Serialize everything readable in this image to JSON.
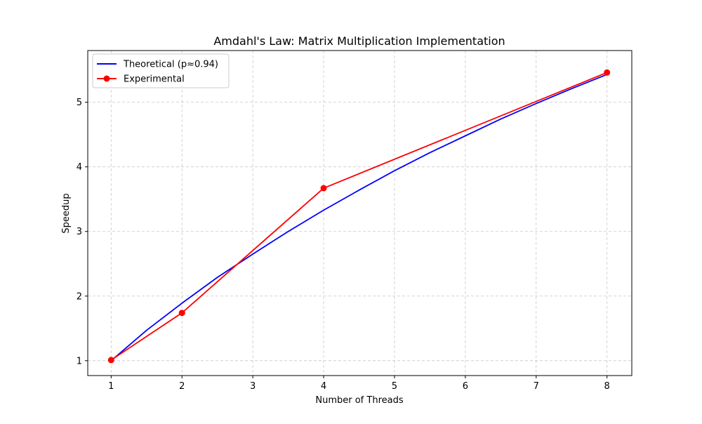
{
  "chart_data": {
    "type": "line",
    "title": "Amdahl's Law: Matrix Multiplication Implementation",
    "xlabel": "Number of Threads",
    "ylabel": "Speedup",
    "xlim": [
      0.67,
      8.35
    ],
    "ylim": [
      0.77,
      5.8
    ],
    "x_ticks": [
      1,
      2,
      3,
      4,
      5,
      6,
      7,
      8
    ],
    "y_ticks": [
      1,
      2,
      3,
      4,
      5
    ],
    "grid": true,
    "legend_position": "top-left",
    "series": [
      {
        "name": "Theoretical (p≈0.94)",
        "color": "#0000ff",
        "marker": "none",
        "parallel_fraction": 0.94,
        "x": [
          1,
          1.5,
          2,
          2.5,
          3,
          3.5,
          4,
          4.5,
          5,
          5.5,
          6,
          6.5,
          7,
          7.5,
          8
        ],
        "values": [
          1.0,
          1.47,
          1.89,
          2.29,
          2.65,
          3.0,
          3.33,
          3.64,
          3.94,
          4.22,
          4.48,
          4.74,
          4.98,
          5.21,
          5.43
        ]
      },
      {
        "name": "Experimental",
        "color": "#ff0000",
        "marker": "circle",
        "x": [
          1,
          2,
          4,
          8
        ],
        "values": [
          1.01,
          1.74,
          3.67,
          5.46
        ]
      }
    ]
  }
}
